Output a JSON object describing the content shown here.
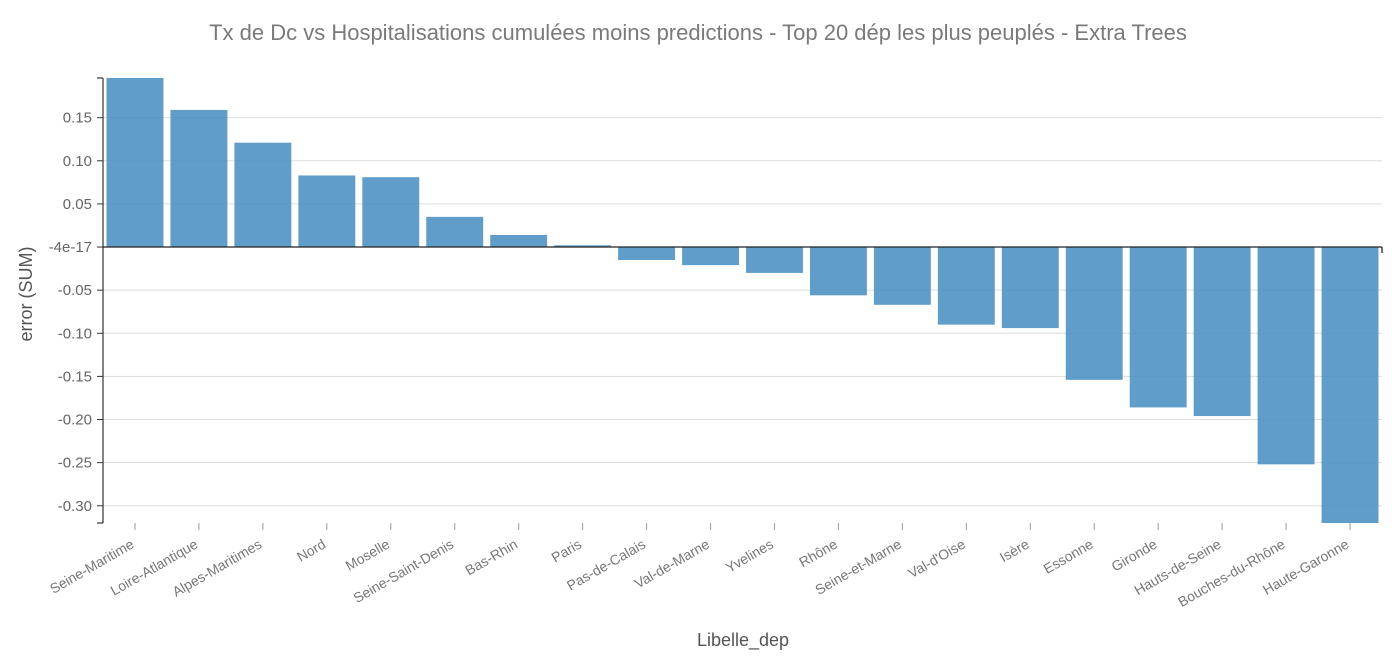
{
  "chart_data": {
    "type": "bar",
    "title": "Tx de Dc vs Hospitalisations cumulées moins predictions - Top 20 dép les plus peuplés - Extra Trees",
    "xlabel": "Libelle_dep",
    "ylabel": "error (SUM)",
    "categories": [
      "Seine-Maritime",
      "Loire-Atlantique",
      "Alpes-Maritimes",
      "Nord",
      "Moselle",
      "Seine-Saint-Denis",
      "Bas-Rhin",
      "Paris",
      "Pas-de-Calais",
      "Val-de-Marne",
      "Yvelines",
      "Rhône",
      "Seine-et-Marne",
      "Val-d'Oise",
      "Isère",
      "Essonne",
      "Gironde",
      "Hauts-de-Seine",
      "Bouches-du-Rhône",
      "Haute-Garonne"
    ],
    "values": [
      0.196,
      0.159,
      0.121,
      0.083,
      0.081,
      0.035,
      0.014,
      0.002,
      -0.015,
      -0.021,
      -0.03,
      -0.056,
      -0.067,
      -0.09,
      -0.094,
      -0.154,
      -0.186,
      -0.196,
      -0.252,
      -0.32
    ],
    "ylim": [
      -0.32,
      0.196
    ],
    "yticks": [
      {
        "value": 0.15,
        "label": "0.15"
      },
      {
        "value": 0.1,
        "label": "0.10"
      },
      {
        "value": 0.05,
        "label": "0.05"
      },
      {
        "value": 0,
        "label": "-4e-17"
      },
      {
        "value": -0.05,
        "label": "-0.05"
      },
      {
        "value": -0.1,
        "label": "-0.10"
      },
      {
        "value": -0.15,
        "label": "-0.15"
      },
      {
        "value": -0.2,
        "label": "-0.20"
      },
      {
        "value": -0.25,
        "label": "-0.25"
      },
      {
        "value": -0.3,
        "label": "-0.30"
      }
    ],
    "grid": true,
    "bar_color": "#4a90c2"
  }
}
